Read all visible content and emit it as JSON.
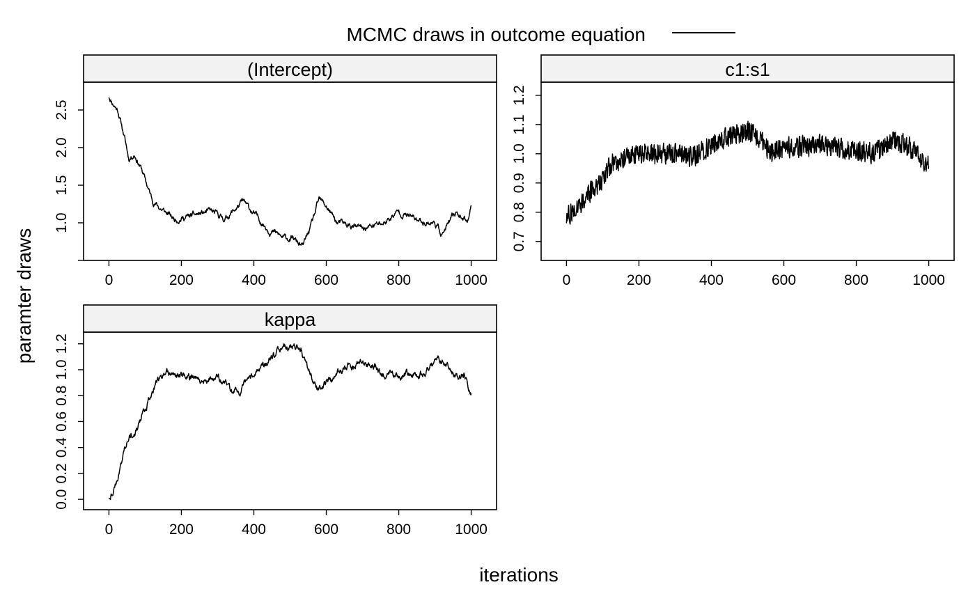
{
  "chart_data": {
    "type": "line",
    "legend": {
      "label": "MCMC draws in outcome equation",
      "placement": "top"
    },
    "xlabel": "iterations",
    "ylabel": "paramter draws",
    "grid": false,
    "panels": [
      {
        "title": "(Intercept)",
        "xlim": [
          -70,
          1070
        ],
        "xticks": [
          0,
          200,
          400,
          600,
          800,
          1000
        ],
        "ylim": [
          0.5,
          2.87
        ],
        "yticks": [
          0.5,
          1.0,
          1.5,
          2.0,
          2.5
        ],
        "ytick_labels": [
          "",
          "1.0",
          "1.5",
          "2.0",
          "2.5"
        ],
        "trend": [
          [
            0,
            2.68
          ],
          [
            10,
            2.6
          ],
          [
            25,
            2.5
          ],
          [
            40,
            2.2
          ],
          [
            55,
            1.85
          ],
          [
            70,
            1.92
          ],
          [
            90,
            1.72
          ],
          [
            105,
            1.5
          ],
          [
            120,
            1.3
          ],
          [
            140,
            1.2
          ],
          [
            180,
            1.05
          ],
          [
            220,
            1.08
          ],
          [
            280,
            1.15
          ],
          [
            320,
            1.05
          ],
          [
            370,
            1.28
          ],
          [
            400,
            1.12
          ],
          [
            440,
            0.92
          ],
          [
            480,
            0.8
          ],
          [
            510,
            0.78
          ],
          [
            535,
            0.68
          ],
          [
            560,
            0.98
          ],
          [
            580,
            1.3
          ],
          [
            600,
            1.22
          ],
          [
            630,
            1.0
          ],
          [
            700,
            0.92
          ],
          [
            760,
            1.0
          ],
          [
            800,
            1.15
          ],
          [
            860,
            1.02
          ],
          [
            900,
            1.0
          ],
          [
            920,
            0.85
          ],
          [
            960,
            1.15
          ],
          [
            990,
            1.0
          ],
          [
            1000,
            1.28
          ]
        ],
        "noise": 0.025,
        "persistence": 0.85,
        "seed": 11
      },
      {
        "title": "c1:s1",
        "xlim": [
          -70,
          1070
        ],
        "xticks": [
          0,
          200,
          400,
          600,
          800,
          1000
        ],
        "ylim": [
          0.635,
          1.245
        ],
        "yticks": [
          0.7,
          0.8,
          0.9,
          1.0,
          1.1,
          1.2
        ],
        "ytick_labels": [
          "0.7",
          "0.8",
          "0.9",
          "1.0",
          "1.1",
          "1.2"
        ],
        "trend": [
          [
            0,
            0.78
          ],
          [
            30,
            0.82
          ],
          [
            60,
            0.86
          ],
          [
            90,
            0.9
          ],
          [
            120,
            0.96
          ],
          [
            160,
            0.99
          ],
          [
            200,
            1.0
          ],
          [
            300,
            1.0
          ],
          [
            350,
            0.99
          ],
          [
            400,
            1.03
          ],
          [
            450,
            1.06
          ],
          [
            500,
            1.08
          ],
          [
            540,
            1.05
          ],
          [
            560,
            1.0
          ],
          [
            600,
            1.02
          ],
          [
            700,
            1.03
          ],
          [
            800,
            1.01
          ],
          [
            850,
            1.0
          ],
          [
            900,
            1.05
          ],
          [
            950,
            1.02
          ],
          [
            1000,
            0.96
          ]
        ],
        "noise": 0.035,
        "persistence": 0.1,
        "seed": 27
      },
      {
        "title": "kappa",
        "xlim": [
          -70,
          1070
        ],
        "xticks": [
          0,
          200,
          400,
          600,
          800,
          1000
        ],
        "ylim": [
          -0.08,
          1.29
        ],
        "yticks": [
          0.0,
          0.2,
          0.4,
          0.6,
          0.8,
          1.0,
          1.2
        ],
        "ytick_labels": [
          "0.0",
          "0.2",
          "0.4",
          "0.6",
          "0.8",
          "1.0",
          "1.2"
        ],
        "trend": [
          [
            0,
            0.02
          ],
          [
            20,
            0.12
          ],
          [
            40,
            0.35
          ],
          [
            55,
            0.52
          ],
          [
            70,
            0.48
          ],
          [
            90,
            0.62
          ],
          [
            110,
            0.78
          ],
          [
            130,
            0.9
          ],
          [
            160,
            0.95
          ],
          [
            200,
            0.96
          ],
          [
            260,
            0.92
          ],
          [
            300,
            0.95
          ],
          [
            340,
            0.84
          ],
          [
            360,
            0.82
          ],
          [
            400,
            0.98
          ],
          [
            450,
            1.08
          ],
          [
            490,
            1.18
          ],
          [
            530,
            1.16
          ],
          [
            550,
            1.0
          ],
          [
            575,
            0.84
          ],
          [
            600,
            0.9
          ],
          [
            650,
            1.02
          ],
          [
            700,
            1.05
          ],
          [
            760,
            0.98
          ],
          [
            800,
            0.96
          ],
          [
            860,
            0.97
          ],
          [
            910,
            1.08
          ],
          [
            950,
            0.96
          ],
          [
            980,
            0.96
          ],
          [
            1000,
            0.84
          ]
        ],
        "noise": 0.018,
        "persistence": 0.85,
        "seed": 43
      }
    ]
  }
}
